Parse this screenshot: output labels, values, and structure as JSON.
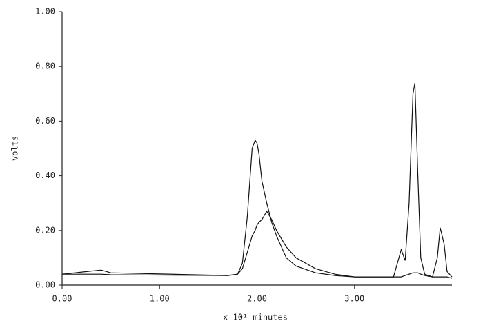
{
  "chart_data": {
    "type": "line",
    "xlabel": "x 10¹ minutes",
    "ylabel": "volts",
    "x": [
      0,
      0.4,
      0.5,
      1.7,
      1.8,
      1.85,
      1.9,
      1.95,
      1.98,
      2.0,
      2.02,
      2.05,
      2.1,
      2.15,
      2.2,
      2.3,
      2.4,
      2.6,
      2.8,
      3.0,
      3.4,
      3.48,
      3.52,
      3.56,
      3.6,
      3.62,
      3.65,
      3.68,
      3.72,
      3.8,
      3.85,
      3.88,
      3.92,
      3.95,
      4.0
    ],
    "series": [
      {
        "color": "#111111",
        "values": [
          0.04,
          0.04,
          0.038,
          0.035,
          0.04,
          0.08,
          0.25,
          0.5,
          0.53,
          0.52,
          0.48,
          0.38,
          0.3,
          0.23,
          0.18,
          0.1,
          0.07,
          0.045,
          0.035,
          0.03,
          0.03,
          0.13,
          0.09,
          0.3,
          0.7,
          0.74,
          0.4,
          0.1,
          0.04,
          0.03,
          0.03,
          0.03,
          0.03,
          0.03,
          0.025
        ]
      },
      {
        "color": "#111111",
        "values": [
          0.04,
          0.055,
          0.045,
          0.035,
          0.04,
          0.06,
          0.12,
          0.18,
          0.2,
          0.22,
          0.23,
          0.24,
          0.27,
          0.24,
          0.2,
          0.14,
          0.1,
          0.06,
          0.04,
          0.03,
          0.03,
          0.03,
          0.035,
          0.04,
          0.045,
          0.045,
          0.045,
          0.04,
          0.035,
          0.03,
          0.1,
          0.21,
          0.15,
          0.05,
          0.03
        ]
      }
    ],
    "xlim": [
      0,
      4.0
    ],
    "xticks": [
      {
        "value": 0,
        "label": "0.00"
      },
      {
        "value": 1,
        "label": "1.00"
      },
      {
        "value": 2,
        "label": "2.00"
      },
      {
        "value": 3,
        "label": "3.00"
      }
    ],
    "ylim": [
      0,
      1
    ],
    "yticks": [
      {
        "value": 0,
        "label": "0.00"
      },
      {
        "value": 0.2,
        "label": "0.20"
      },
      {
        "value": 0.4,
        "label": "0.40"
      },
      {
        "value": 0.6,
        "label": "0.60"
      },
      {
        "value": 0.8,
        "label": "0.80"
      },
      {
        "value": 1,
        "label": "1.00"
      }
    ],
    "grid": false
  }
}
